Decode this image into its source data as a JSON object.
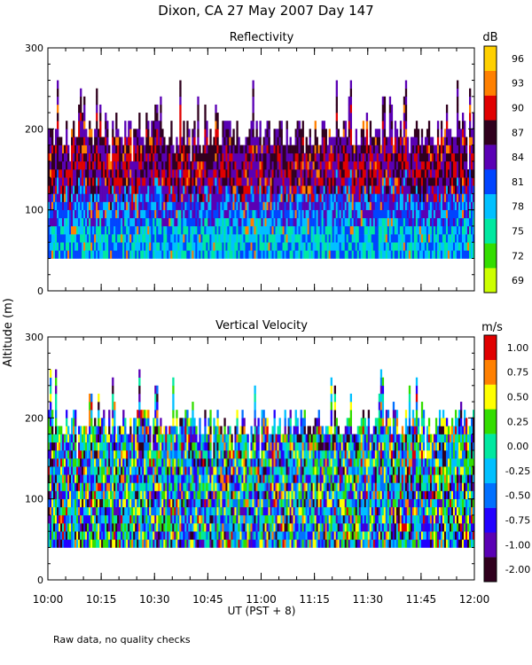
{
  "title": "Dixon, CA 27 May 2007  Day 147",
  "ylabel": "Altitude (m)",
  "xlabel": "UT  (PST + 8)",
  "footnote": "Raw data, no quality checks",
  "x_tick_labels": [
    "10:00",
    "10:15",
    "10:30",
    "10:45",
    "11:00",
    "11:15",
    "11:30",
    "11:45",
    "12:00"
  ],
  "chart_data": [
    {
      "type": "heatmap",
      "title": "Reflectivity",
      "ylabel": "Altitude (m)",
      "xlabel": "UT  (PST + 8)",
      "x_range": [
        "10:00",
        "12:00"
      ],
      "ylim": [
        0,
        300
      ],
      "y_ticks": [
        0,
        100,
        200,
        300
      ],
      "colorbar": {
        "unit": "dB",
        "tick_labels": [
          "69",
          "72",
          "75",
          "78",
          "81",
          "84",
          "87",
          "90",
          "93",
          "96"
        ],
        "colors": [
          "#ccff00",
          "#33dd00",
          "#00e8a0",
          "#00c0ff",
          "#0044ff",
          "#5a00b4",
          "#30001e",
          "#e00000",
          "#ff8000",
          "#ffd000"
        ]
      },
      "data_description_values": {
        "min_altitude_m": 40,
        "typical_top_m": 200,
        "max_altitude_m": 300,
        "low_layer_dB": 76,
        "mid_layer_dB": 86,
        "upper_layer_dB": 90
      }
    },
    {
      "type": "heatmap",
      "title": "Vertical Velocity",
      "ylabel": "Altitude (m)",
      "xlabel": "UT  (PST + 8)",
      "x_range": [
        "10:00",
        "12:00"
      ],
      "ylim": [
        0,
        300
      ],
      "y_ticks": [
        0,
        100,
        200,
        300
      ],
      "colorbar": {
        "unit": "m/s",
        "tick_labels": [
          "-2.00",
          "-1.00",
          "-0.75",
          "-0.50",
          "-0.25",
          "0.00",
          "0.25",
          "0.50",
          "0.75",
          "1.00"
        ],
        "colors": [
          "#30001e",
          "#5a00b4",
          "#2200ff",
          "#0070ff",
          "#00c0ff",
          "#00e8a0",
          "#33dd00",
          "#ffff00",
          "#ff8000",
          "#e00000"
        ]
      },
      "data_description_values": {
        "min_altitude_m": 40,
        "typical_top_m": 200,
        "max_altitude_m": 300
      }
    }
  ]
}
